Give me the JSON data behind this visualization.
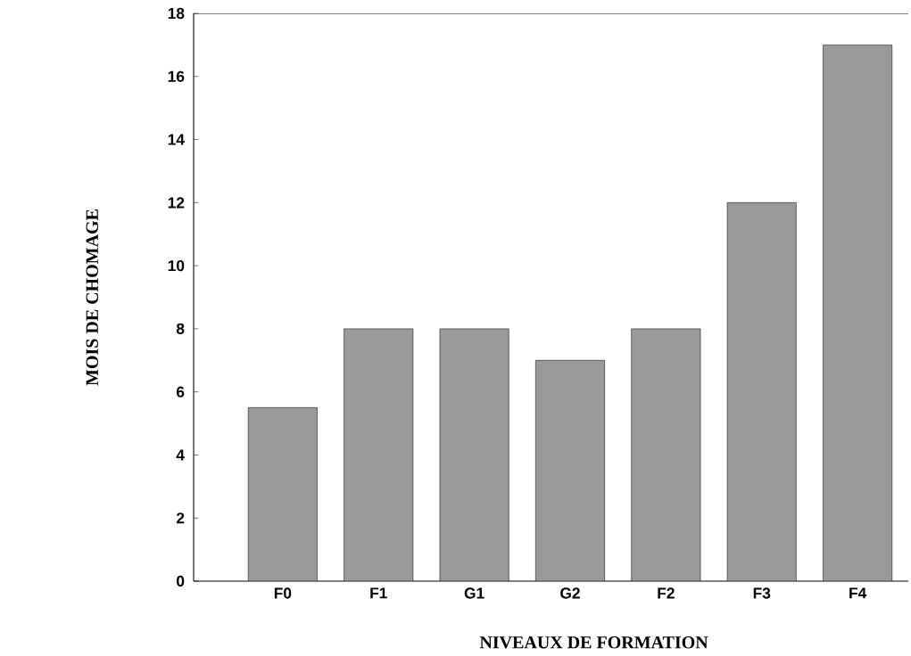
{
  "chart_data": {
    "type": "bar",
    "xlabel": "NIVEAUX DE FORMATION",
    "ylabel": "MOIS DE CHOMAGE",
    "categories": [
      "F0",
      "F1",
      "G1",
      "G2",
      "F2",
      "F3",
      "F4"
    ],
    "values": [
      5.5,
      8,
      8,
      7,
      8,
      12,
      17
    ],
    "color": "#9a9a9a",
    "ylim": [
      0,
      18
    ],
    "yticks": [
      0,
      2,
      4,
      6,
      8,
      10,
      12,
      14,
      16,
      18
    ],
    "grid": false,
    "legend": false
  }
}
